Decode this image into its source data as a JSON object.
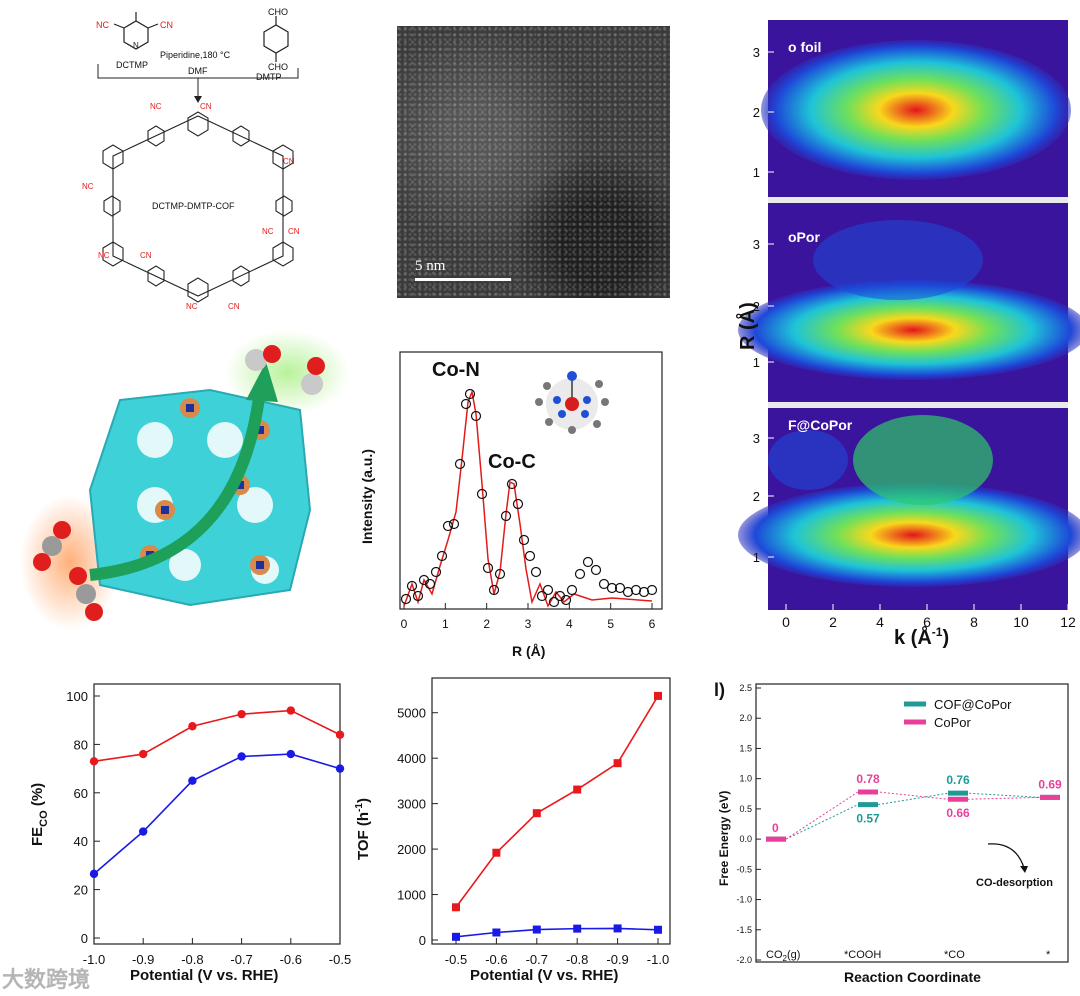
{
  "synthesis": {
    "reagent1": "DCTMP",
    "reagent2": "DMTP",
    "condition": "Piperidine,180 °C",
    "solvent": "DMF",
    "cho_top": "CHO",
    "cho_bottom": "CHO",
    "cn": "CN",
    "nc": "NC",
    "n": "N",
    "product": "DCTMP-DMTP-COF"
  },
  "tem": {
    "scale_label": "5 nm"
  },
  "exafs": {
    "ylabel": "Intensity (a.u.)",
    "xlabel": "R (Å)",
    "peak1": "Co-N",
    "peak2": "Co-C",
    "xticks": [
      "0",
      "1",
      "2",
      "3",
      "4",
      "5",
      "6"
    ]
  },
  "wavelet": {
    "labels": [
      "o foil",
      "oPor",
      "F@CoPor"
    ],
    "ylabel": "R (Å)",
    "xlabel": "k (Å",
    "xlabel_sup": "-1",
    "xlabel_end": ")",
    "yticks_top": [
      "1",
      "2",
      "3"
    ],
    "yticks_mid": [
      "1",
      "2",
      "3"
    ],
    "yticks_bot": [
      "1",
      "2",
      "3"
    ],
    "xticks": [
      "0",
      "2",
      "4",
      "6",
      "8",
      "10",
      "12"
    ]
  },
  "chart_data": [
    {
      "type": "line",
      "title": "",
      "xlabel": "Potential (V vs. RHE)",
      "ylabel": "FE",
      "ylabel_sub": "CO",
      "ylabel_end": " (%)",
      "categories": [
        "-1.0",
        "-0.9",
        "-0.8",
        "-0.7",
        "-0.6",
        "-0.5"
      ],
      "ylim": [
        0,
        100
      ],
      "yticks": [
        "0",
        "20",
        "40",
        "60",
        "80",
        "100"
      ],
      "series": [
        {
          "name": "red",
          "color": "#e8191c",
          "values": [
            73,
            76,
            87.5,
            92.5,
            94,
            84
          ]
        },
        {
          "name": "blue",
          "color": "#1a1ae6",
          "values": [
            26.5,
            44,
            65,
            75,
            76,
            70
          ]
        }
      ]
    },
    {
      "type": "line",
      "title": "",
      "xlabel": "Potential (V vs. RHE)",
      "ylabel": "TOF (h",
      "ylabel_sup": "-1",
      "ylabel_end": ")",
      "categories": [
        "-0.5",
        "-0.6",
        "-0.7",
        "-0.8",
        "-0.9",
        "-1.0"
      ],
      "ylim": [
        0,
        5500
      ],
      "yticks": [
        "0",
        "1000",
        "2000",
        "3000",
        "4000",
        "5000"
      ],
      "series": [
        {
          "name": "red",
          "color": "#e8191c",
          "values": [
            720,
            1920,
            2790,
            3310,
            3890,
            5370
          ]
        },
        {
          "name": "blue",
          "color": "#1a1ae6",
          "values": [
            70,
            165,
            230,
            250,
            255,
            225
          ]
        }
      ]
    },
    {
      "type": "line",
      "title": "",
      "panel_label": "l)",
      "xlabel": "Reaction Coordinate",
      "ylabel": "Free Energy (eV)",
      "categories": [
        "CO",
        "*COOH",
        "*CO",
        "*"
      ],
      "cat0_sub": "2",
      "cat0_end": "(g)",
      "ylim": [
        -2.0,
        2.5
      ],
      "yticks": [
        "-2.0",
        "-1.5",
        "-1.0",
        "-0.5",
        "0.0",
        "0.5",
        "1.0",
        "1.5",
        "2.0",
        "2.5"
      ],
      "annotation": "CO-desorption",
      "start_label": "0",
      "series": [
        {
          "name": "COF@CoPor",
          "color": "#1f9a96",
          "values": [
            0,
            0.57,
            0.76,
            0.69
          ],
          "labels": [
            "",
            "0.57",
            "0.76",
            ""
          ]
        },
        {
          "name": "CoPor",
          "color": "#e8409a",
          "values": [
            0,
            0.78,
            0.66,
            0.69
          ],
          "labels": [
            "",
            "0.78",
            "0.66",
            "0.69"
          ]
        }
      ]
    }
  ],
  "watermark": "大数跨境"
}
